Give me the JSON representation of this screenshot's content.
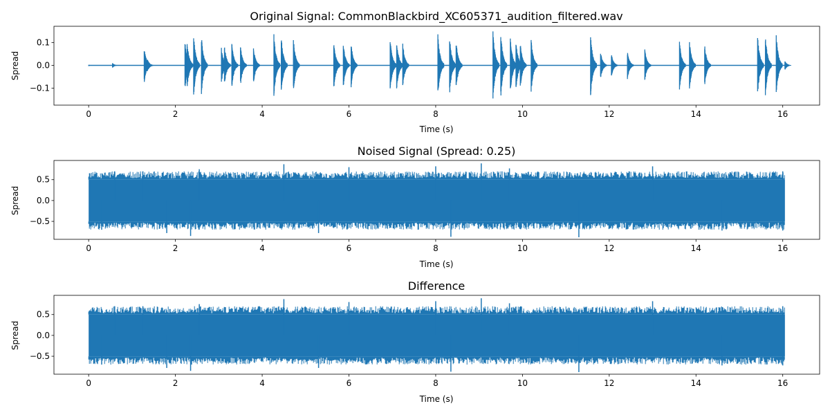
{
  "chart_data": [
    {
      "type": "line",
      "title": "Original Signal: CommonBlackbird_XC605371_audition_filtered.wav",
      "xlabel": "Time (s)",
      "ylabel": "Spread",
      "xlim": [
        -0.8,
        16.85
      ],
      "ylim": [
        -0.175,
        0.172
      ],
      "xticks": [
        0,
        2,
        4,
        6,
        8,
        10,
        12,
        14,
        16
      ],
      "xtick_labels": [
        "0",
        "2",
        "4",
        "6",
        "8",
        "10",
        "12",
        "14",
        "16"
      ],
      "yticks": [
        0.1,
        0.0,
        -0.1
      ],
      "ytick_labels": [
        "0.1",
        "0.0",
        "−0.1"
      ],
      "grid": false,
      "color": "#1f77b4",
      "series": [
        {
          "x": [
            0,
            0.55,
            0.6,
            1.28,
            1.35,
            2.22,
            2.27,
            2.42,
            2.6,
            3.06,
            3.13,
            3.3,
            3.5,
            3.8,
            4.27,
            4.44,
            4.72,
            5.65,
            5.87,
            6.05,
            6.95,
            7.1,
            7.24,
            8.05,
            8.32,
            8.47,
            9.32,
            9.5,
            9.72,
            9.85,
            9.95,
            10.2,
            11.57,
            11.8,
            12.05,
            12.42,
            12.82,
            13.62,
            13.85,
            14.2,
            15.42,
            15.6,
            15.85,
            16.05
          ],
          "peak": [
            0.003,
            0.01,
            0.002,
            0.08,
            0.03,
            0.11,
            0.1,
            0.14,
            0.13,
            0.08,
            0.09,
            0.1,
            0.09,
            0.08,
            0.14,
            0.13,
            0.12,
            0.11,
            0.1,
            0.1,
            0.12,
            0.11,
            0.1,
            0.14,
            0.13,
            0.11,
            0.155,
            0.145,
            0.125,
            0.11,
            0.1,
            0.12,
            0.14,
            0.06,
            0.05,
            0.06,
            0.07,
            0.11,
            0.11,
            0.09,
            0.135,
            0.135,
            0.135,
            0.02
          ]
        }
      ]
    },
    {
      "type": "line",
      "title": "Noised Signal (Spread: 0.25)",
      "xlabel": "Time (s)",
      "ylabel": "Spread",
      "xlim": [
        -0.8,
        16.85
      ],
      "ylim": [
        -0.93,
        0.96
      ],
      "xticks": [
        0,
        2,
        4,
        6,
        8,
        10,
        12,
        14,
        16
      ],
      "xtick_labels": [
        "0",
        "2",
        "4",
        "6",
        "8",
        "10",
        "12",
        "14",
        "16"
      ],
      "yticks": [
        0.5,
        0.0,
        -0.5
      ],
      "ytick_labels": [
        "0.5",
        "0.0",
        "−0.5"
      ],
      "grid": false,
      "color": "#1f77b4",
      "series": [
        {
          "x_range": [
            0,
            16.05
          ],
          "dense_band": [
            -0.5,
            0.5
          ],
          "peaks": [
            [
              0.6,
              0.7
            ],
            [
              1.25,
              0.7
            ],
            [
              2.55,
              0.75
            ],
            [
              4.5,
              0.87
            ],
            [
              6.0,
              0.8
            ],
            [
              8.0,
              0.82
            ],
            [
              9.05,
              0.89
            ],
            [
              9.7,
              0.77
            ],
            [
              13.0,
              0.82
            ],
            [
              16.0,
              0.7
            ]
          ],
          "troughs": [
            [
              0.3,
              -0.7
            ],
            [
              1.8,
              -0.78
            ],
            [
              2.35,
              -0.85
            ],
            [
              5.3,
              -0.78
            ],
            [
              8.35,
              -0.87
            ],
            [
              11.3,
              -0.88
            ],
            [
              14.6,
              -0.72
            ],
            [
              16.0,
              -0.72
            ]
          ]
        }
      ]
    },
    {
      "type": "line",
      "title": "Difference",
      "xlabel": "Time (s)",
      "ylabel": "Spread",
      "xlim": [
        -0.8,
        16.85
      ],
      "ylim": [
        -0.93,
        0.96
      ],
      "xticks": [
        0,
        2,
        4,
        6,
        8,
        10,
        12,
        14,
        16
      ],
      "xtick_labels": [
        "0",
        "2",
        "4",
        "6",
        "8",
        "10",
        "12",
        "14",
        "16"
      ],
      "yticks": [
        0.5,
        0.0,
        -0.5
      ],
      "ytick_labels": [
        "0.5",
        "0.0",
        "−0.5"
      ],
      "grid": false,
      "color": "#1f77b4",
      "series": [
        {
          "x_range": [
            0,
            16.05
          ],
          "dense_band": [
            -0.5,
            0.5
          ],
          "peaks": [
            [
              0.6,
              0.7
            ],
            [
              1.25,
              0.7
            ],
            [
              2.55,
              0.75
            ],
            [
              4.5,
              0.87
            ],
            [
              6.0,
              0.8
            ],
            [
              8.0,
              0.82
            ],
            [
              9.05,
              0.89
            ],
            [
              9.7,
              0.77
            ],
            [
              13.0,
              0.82
            ],
            [
              16.0,
              0.7
            ]
          ],
          "troughs": [
            [
              0.3,
              -0.7
            ],
            [
              1.8,
              -0.78
            ],
            [
              2.35,
              -0.85
            ],
            [
              5.3,
              -0.78
            ],
            [
              8.35,
              -0.87
            ],
            [
              11.3,
              -0.88
            ],
            [
              14.6,
              -0.72
            ],
            [
              16.0,
              -0.72
            ]
          ]
        }
      ]
    }
  ]
}
